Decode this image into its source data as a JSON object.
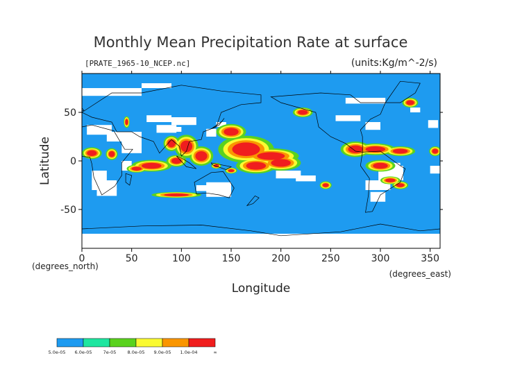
{
  "chart_data": {
    "type": "heatmap",
    "title": "Monthly Mean Precipitation Rate at surface",
    "source_label": "[PRATE_1965-10_NCEP.nc]",
    "units_label": "(units:Kg/m^-2/s)",
    "xlabel": "Longitude",
    "ylabel": "Latitude",
    "x_unit_label": "(degrees_east)",
    "y_unit_label": "(degrees_north)",
    "xlim": [
      0,
      360
    ],
    "ylim": [
      -90,
      90
    ],
    "x_ticks": [
      0,
      50,
      100,
      150,
      200,
      250,
      300,
      350
    ],
    "y_ticks": [
      50,
      0,
      -50
    ],
    "grid": false,
    "colorbar": {
      "colors": [
        "#1e9bf0",
        "#1ee6a0",
        "#5ad21e",
        "#fafa32",
        "#fa9600",
        "#f01e1e"
      ],
      "labels": [
        "5.0e-05",
        "6.0e-05",
        "7e-05",
        "8.0e-05",
        "9.0e-05",
        "1.0e-04",
        "∞"
      ]
    },
    "colors": {
      "ocean_fill": "#1e9bf0",
      "no_data": "#ffffff",
      "coast": "#000000"
    }
  }
}
